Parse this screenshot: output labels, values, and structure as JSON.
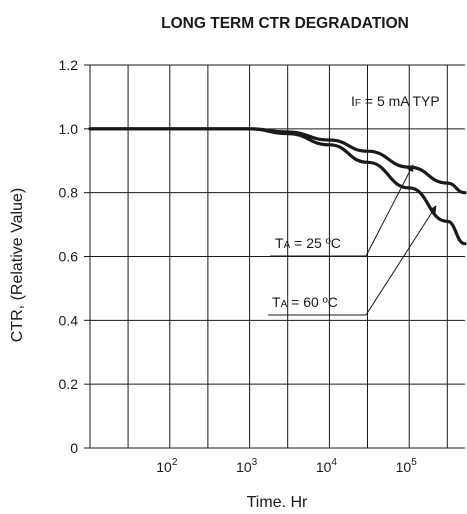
{
  "chart_data": {
    "type": "line",
    "title": "LONG TERM CTR DEGRADATION",
    "xlabel": "Time. Hr",
    "ylabel": "CTR, (Relative Value)",
    "x_scale": "log",
    "xlim": [
      10,
      500000
    ],
    "ylim": [
      0,
      1.2
    ],
    "grid": true,
    "x_ticks": [
      {
        "mantissa": "10",
        "exp": "2"
      },
      {
        "mantissa": "10",
        "exp": "3"
      },
      {
        "mantissa": "10",
        "exp": "4"
      },
      {
        "mantissa": "10",
        "exp": "5"
      }
    ],
    "y_ticks": [
      "0",
      "0.2",
      "0.4",
      "0.6",
      "0.8",
      "1.0",
      "1.2"
    ],
    "annotations": {
      "condition": {
        "pre": "I",
        "sub": "F",
        "post": " = 5 mA TYP"
      },
      "ta25": {
        "pre": "T",
        "sub": "A",
        "post": " = 25 ºC"
      },
      "ta60": {
        "pre": "T",
        "sub": "A",
        "post": " = 60 ºC"
      }
    },
    "series": [
      {
        "id": "ta25",
        "x": [
          10,
          100,
          1000,
          3000,
          10000,
          30000,
          100000,
          300000,
          500000
        ],
        "y": [
          1.0,
          1.0,
          1.0,
          0.99,
          0.965,
          0.93,
          0.88,
          0.83,
          0.8
        ]
      },
      {
        "id": "ta60",
        "x": [
          10,
          100,
          1000,
          3000,
          10000,
          30000,
          100000,
          300000,
          500000
        ],
        "y": [
          1.0,
          1.0,
          1.0,
          0.985,
          0.95,
          0.895,
          0.815,
          0.71,
          0.64
        ]
      }
    ]
  }
}
